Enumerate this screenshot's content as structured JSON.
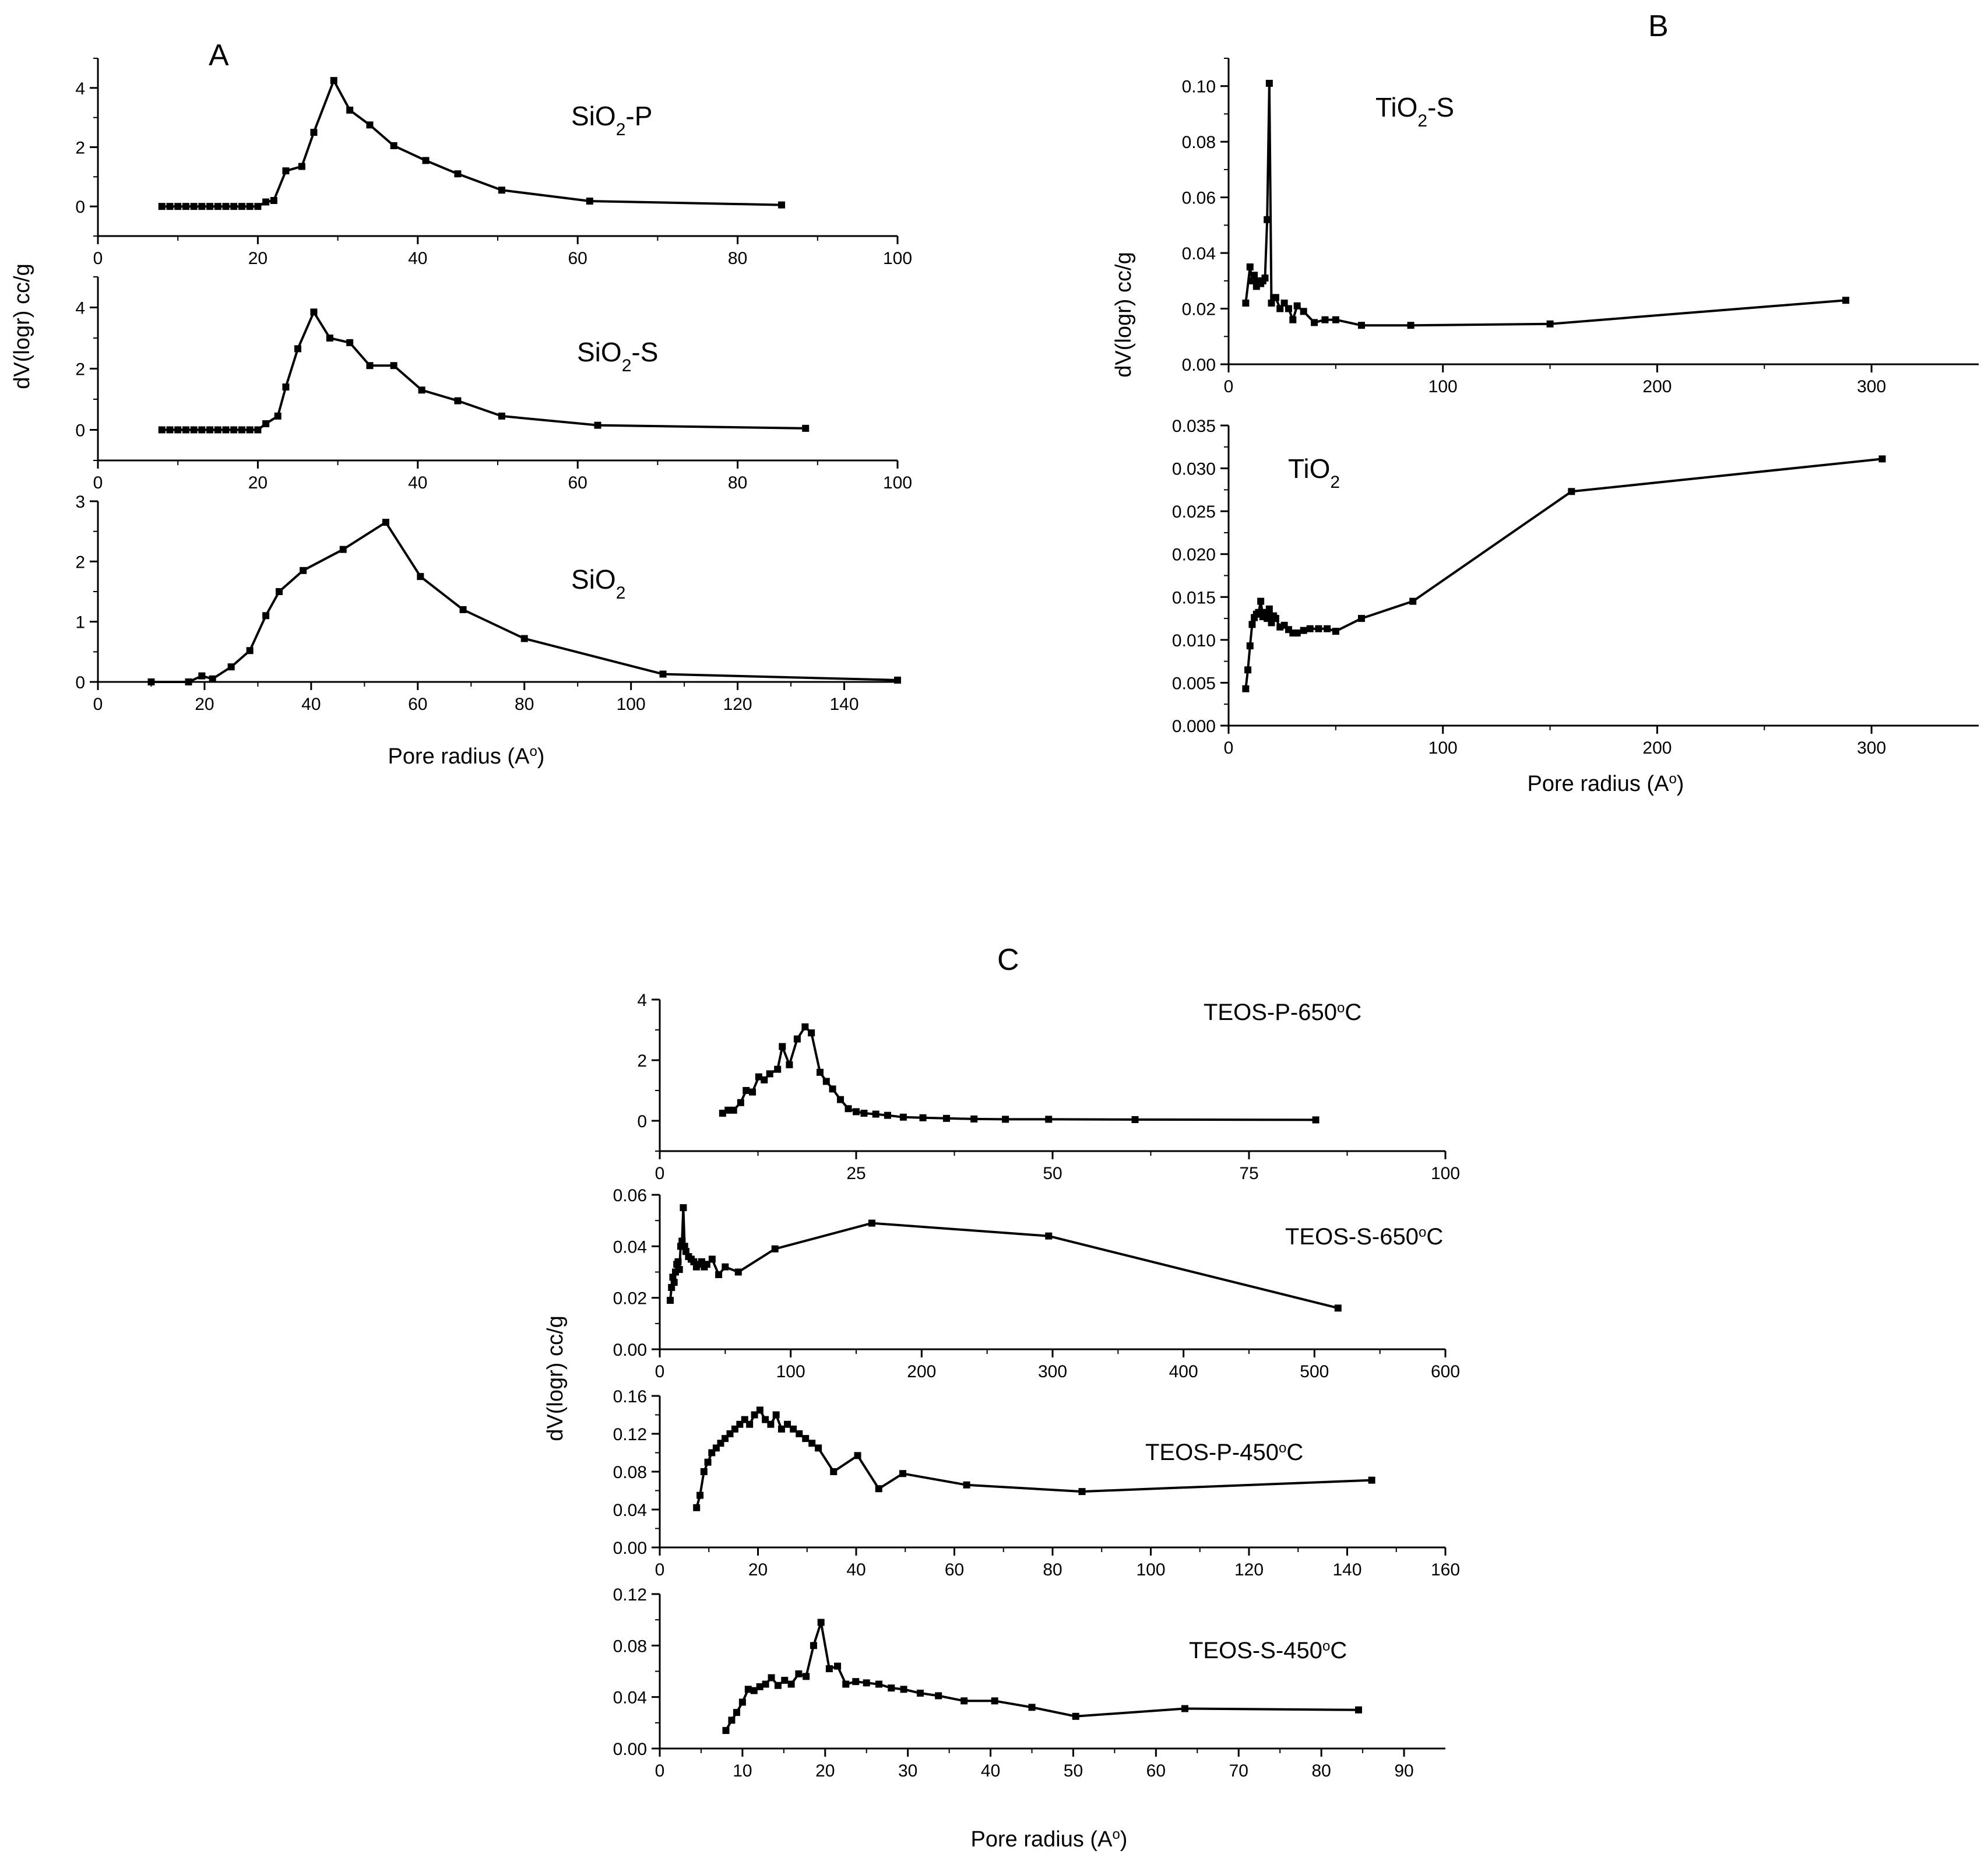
{
  "figure": {
    "letters": {
      "a": "A",
      "b": "B",
      "c": "C"
    },
    "ylabel": "dV(logr) cc/g",
    "xlabel": "Pore radius (A",
    "xlabel_deg": "o",
    "xlabel_close": ")"
  },
  "chart_data": [
    {
      "type": "line",
      "panel": "A",
      "name": "SiO2-P",
      "label_main": "SiO",
      "label_sub": "2",
      "label_tail": "-P",
      "xlim": [
        0,
        100
      ],
      "ylim": [
        -1,
        5
      ],
      "xticks": [
        0,
        20,
        40,
        60,
        80,
        100
      ],
      "yticks": [
        0,
        2,
        4
      ],
      "x": [
        8,
        9,
        10,
        11,
        12,
        13,
        14,
        15,
        16,
        17,
        18,
        19,
        20,
        21,
        22,
        23.5,
        25.5,
        27,
        29.5,
        31.5,
        34,
        37,
        41,
        45,
        50.5,
        61.5,
        85.5
      ],
      "y": [
        0,
        0,
        0,
        0,
        0,
        0,
        0,
        0,
        0,
        0,
        0,
        0,
        0,
        0.15,
        0.2,
        1.2,
        1.35,
        2.5,
        4.25,
        3.25,
        2.75,
        2.05,
        1.55,
        1.1,
        0.55,
        0.18,
        0.05
      ]
    },
    {
      "type": "line",
      "panel": "A",
      "name": "SiO2-S",
      "label_main": "SiO",
      "label_sub": "2",
      "label_tail": "-S",
      "xlim": [
        0,
        100
      ],
      "ylim": [
        -1,
        5
      ],
      "xticks": [
        0,
        20,
        40,
        60,
        80,
        100
      ],
      "yticks": [
        0,
        2,
        4
      ],
      "x": [
        8,
        9,
        10,
        11,
        12,
        13,
        14,
        15,
        16,
        17,
        18,
        19,
        20,
        21,
        22.5,
        23.5,
        25,
        27,
        29,
        31.5,
        34,
        37,
        40.5,
        45,
        50.5,
        62.5,
        88.5
      ],
      "y": [
        0,
        0,
        0,
        0,
        0,
        0,
        0,
        0,
        0,
        0,
        0,
        0,
        0,
        0.2,
        0.45,
        1.4,
        2.65,
        3.85,
        3.0,
        2.85,
        2.1,
        2.1,
        1.3,
        0.95,
        0.45,
        0.15,
        0.05
      ]
    },
    {
      "type": "line",
      "panel": "A",
      "name": "SiO2",
      "label_main": "SiO",
      "label_sub": "2",
      "label_tail": "",
      "xlim": [
        0,
        150
      ],
      "ylim": [
        0,
        3
      ],
      "xticks": [
        0,
        20,
        40,
        60,
        80,
        100,
        120,
        140
      ],
      "yticks": [
        0,
        1,
        2,
        3
      ],
      "x": [
        10,
        17,
        19.5,
        21.5,
        25,
        28.5,
        31.5,
        34,
        38.5,
        46,
        54,
        60.5,
        68.5,
        80,
        106,
        150
      ],
      "y": [
        0,
        0,
        0.1,
        0.05,
        0.25,
        0.52,
        1.1,
        1.5,
        1.85,
        2.2,
        2.65,
        1.75,
        1.2,
        0.72,
        0.13,
        0.03
      ]
    },
    {
      "type": "line",
      "panel": "B",
      "name": "TiO2-S",
      "label_main": "TiO",
      "label_sub": "2",
      "label_tail": "-S",
      "xlim": [
        0,
        350
      ],
      "ylim": [
        0,
        0.11
      ],
      "xticks": [
        0,
        100,
        200,
        300
      ],
      "yticks": [
        0.0,
        0.02,
        0.04,
        0.06,
        0.08,
        0.1
      ],
      "xtick_labels": [
        "0",
        "100",
        "200",
        "300"
      ],
      "ytick_labels": [
        "0.00",
        "0.02",
        "0.04",
        "0.06",
        "0.08",
        "0.10"
      ],
      "x": [
        8,
        10,
        11,
        12,
        13,
        14,
        15,
        16,
        17,
        18,
        19,
        20,
        21,
        22,
        24,
        26,
        28,
        30,
        32,
        35,
        40,
        45,
        50,
        62,
        85,
        150,
        288
      ],
      "y": [
        0.022,
        0.035,
        0.03,
        0.032,
        0.028,
        0.03,
        0.029,
        0.03,
        0.031,
        0.052,
        0.101,
        0.022,
        0.024,
        0.024,
        0.02,
        0.022,
        0.02,
        0.016,
        0.021,
        0.019,
        0.015,
        0.016,
        0.016,
        0.014,
        0.014,
        0.0145,
        0.023
      ]
    },
    {
      "type": "line",
      "panel": "B",
      "name": "TiO2",
      "label_main": "TiO",
      "label_sub": "2",
      "label_tail": "",
      "xlim": [
        0,
        350
      ],
      "ylim": [
        0,
        0.035
      ],
      "xticks": [
        0,
        100,
        200,
        300
      ],
      "yticks": [
        0,
        0.005,
        0.01,
        0.015,
        0.02,
        0.025,
        0.03,
        0.035
      ],
      "xtick_labels": [
        "0",
        "100",
        "200",
        "300"
      ],
      "ytick_labels": [
        "0.000",
        "0.005",
        "0.010",
        "0.015",
        "0.020",
        "0.025",
        "0.030",
        "0.035"
      ],
      "x": [
        8,
        9,
        10,
        11,
        12,
        13,
        14,
        15,
        16,
        17,
        18,
        19,
        20,
        21,
        22,
        24,
        26,
        28,
        30,
        32,
        35,
        38,
        42,
        46,
        50,
        62,
        86,
        160,
        305
      ],
      "y": [
        0.0043,
        0.0065,
        0.0093,
        0.0118,
        0.0126,
        0.013,
        0.0132,
        0.0145,
        0.0127,
        0.0132,
        0.0125,
        0.0136,
        0.012,
        0.0128,
        0.0125,
        0.0115,
        0.0117,
        0.0112,
        0.0108,
        0.0108,
        0.0111,
        0.0113,
        0.0113,
        0.0113,
        0.011,
        0.0125,
        0.0145,
        0.0273,
        0.0311
      ]
    },
    {
      "type": "line",
      "panel": "C",
      "name": "TEOS-P-650C",
      "label_text": "TEOS-P-650",
      "label_deg": "o",
      "label_unit": "C",
      "xlim": [
        0,
        100
      ],
      "ylim": [
        -1,
        4
      ],
      "xticks": [
        0,
        25,
        50,
        75,
        100
      ],
      "yticks": [
        0,
        2,
        4
      ],
      "x": [
        8,
        8.7,
        9.4,
        10.3,
        11,
        11.8,
        12.6,
        13.3,
        14,
        15,
        15.6,
        16.5,
        17.5,
        18.5,
        19.3,
        20.4,
        21.2,
        22,
        23,
        24,
        25,
        26,
        27.5,
        29,
        31,
        33.5,
        36.5,
        40,
        44,
        49.5,
        60.5,
        83.5
      ],
      "y": [
        0.25,
        0.35,
        0.35,
        0.6,
        1.0,
        0.95,
        1.45,
        1.35,
        1.55,
        1.7,
        2.45,
        1.85,
        2.7,
        3.1,
        2.9,
        1.6,
        1.3,
        1.05,
        0.7,
        0.4,
        0.3,
        0.25,
        0.22,
        0.18,
        0.12,
        0.1,
        0.08,
        0.06,
        0.05,
        0.05,
        0.04,
        0.03
      ]
    },
    {
      "type": "line",
      "panel": "C",
      "name": "TEOS-S-650C",
      "label_text": "TEOS-S-650",
      "label_deg": "o",
      "label_unit": "C",
      "xlim": [
        0,
        600
      ],
      "ylim": [
        0,
        0.06
      ],
      "xticks": [
        0,
        100,
        200,
        300,
        400,
        500,
        600
      ],
      "yticks": [
        0.0,
        0.02,
        0.04,
        0.06
      ],
      "xtick_labels": [
        "0",
        "100",
        "200",
        "300",
        "400",
        "500",
        "600"
      ],
      "ytick_labels": [
        "0.00",
        "0.02",
        "0.04",
        "0.06"
      ],
      "x": [
        8,
        9,
        10,
        11,
        12,
        13,
        14,
        15,
        16,
        17,
        18,
        19,
        20,
        22,
        24,
        26,
        28,
        30,
        32,
        34,
        36,
        40,
        45,
        50,
        60,
        88,
        162,
        297,
        518
      ],
      "y": [
        0.019,
        0.024,
        0.028,
        0.026,
        0.03,
        0.033,
        0.034,
        0.031,
        0.04,
        0.042,
        0.055,
        0.04,
        0.038,
        0.036,
        0.035,
        0.034,
        0.032,
        0.033,
        0.034,
        0.032,
        0.033,
        0.035,
        0.029,
        0.032,
        0.03,
        0.039,
        0.049,
        0.044,
        0.016
      ]
    },
    {
      "type": "line",
      "panel": "C",
      "name": "TEOS-P-450C",
      "label_text": "TEOS-P-450",
      "label_deg": "o",
      "label_unit": "C",
      "xlim": [
        0,
        160
      ],
      "ylim": [
        0,
        0.16
      ],
      "xticks": [
        0,
        20,
        40,
        60,
        80,
        100,
        120,
        140,
        160
      ],
      "yticks": [
        0.0,
        0.04,
        0.08,
        0.12,
        0.16
      ],
      "xtick_labels": [
        "0",
        "20",
        "40",
        "60",
        "80",
        "100",
        "120",
        "140",
        "160"
      ],
      "ytick_labels": [
        "0.00",
        "0.04",
        "0.08",
        "0.12",
        "0.16"
      ],
      "x": [
        7.5,
        8.2,
        9,
        9.8,
        10.6,
        11.5,
        12.4,
        13.3,
        14.3,
        15.3,
        16.3,
        17.3,
        18.3,
        19.3,
        20.4,
        21.5,
        22.6,
        23.7,
        24.8,
        26,
        27.2,
        28.4,
        29.7,
        31,
        32.3,
        35.4,
        40.3,
        44.6,
        49.5,
        62.5,
        86,
        145
      ],
      "y": [
        0.042,
        0.055,
        0.08,
        0.09,
        0.1,
        0.105,
        0.11,
        0.115,
        0.12,
        0.125,
        0.13,
        0.135,
        0.13,
        0.14,
        0.145,
        0.135,
        0.13,
        0.14,
        0.125,
        0.13,
        0.125,
        0.12,
        0.115,
        0.11,
        0.105,
        0.08,
        0.097,
        0.062,
        0.078,
        0.066,
        0.059,
        0.071
      ]
    },
    {
      "type": "line",
      "panel": "C",
      "name": "TEOS-S-450C",
      "label_text": "TEOS-S-450",
      "label_deg": "o",
      "label_unit": "C",
      "xlim": [
        0,
        95
      ],
      "ylim": [
        0,
        0.12
      ],
      "xticks": [
        0,
        10,
        20,
        30,
        40,
        50,
        60,
        70,
        80,
        90
      ],
      "yticks": [
        0.0,
        0.04,
        0.08,
        0.12
      ],
      "xtick_labels": [
        "0",
        "10",
        "20",
        "30",
        "40",
        "50",
        "60",
        "70",
        "80",
        "90"
      ],
      "ytick_labels": [
        "0.00",
        "0.04",
        "0.08",
        "0.12"
      ],
      "x": [
        8,
        8.7,
        9.3,
        10,
        10.7,
        11.4,
        12.1,
        12.8,
        13.5,
        14.3,
        15.1,
        15.9,
        16.8,
        17.7,
        18.6,
        19.5,
        20.5,
        21.5,
        22.5,
        23.7,
        25,
        26.5,
        28,
        29.5,
        31.5,
        33.7,
        36.8,
        40.5,
        45,
        50.3,
        63.5,
        84.5
      ],
      "y": [
        0.014,
        0.022,
        0.028,
        0.036,
        0.046,
        0.045,
        0.048,
        0.05,
        0.055,
        0.049,
        0.053,
        0.05,
        0.058,
        0.056,
        0.08,
        0.098,
        0.062,
        0.064,
        0.05,
        0.052,
        0.051,
        0.05,
        0.047,
        0.046,
        0.043,
        0.041,
        0.037,
        0.037,
        0.032,
        0.025,
        0.031,
        0.03
      ]
    }
  ]
}
